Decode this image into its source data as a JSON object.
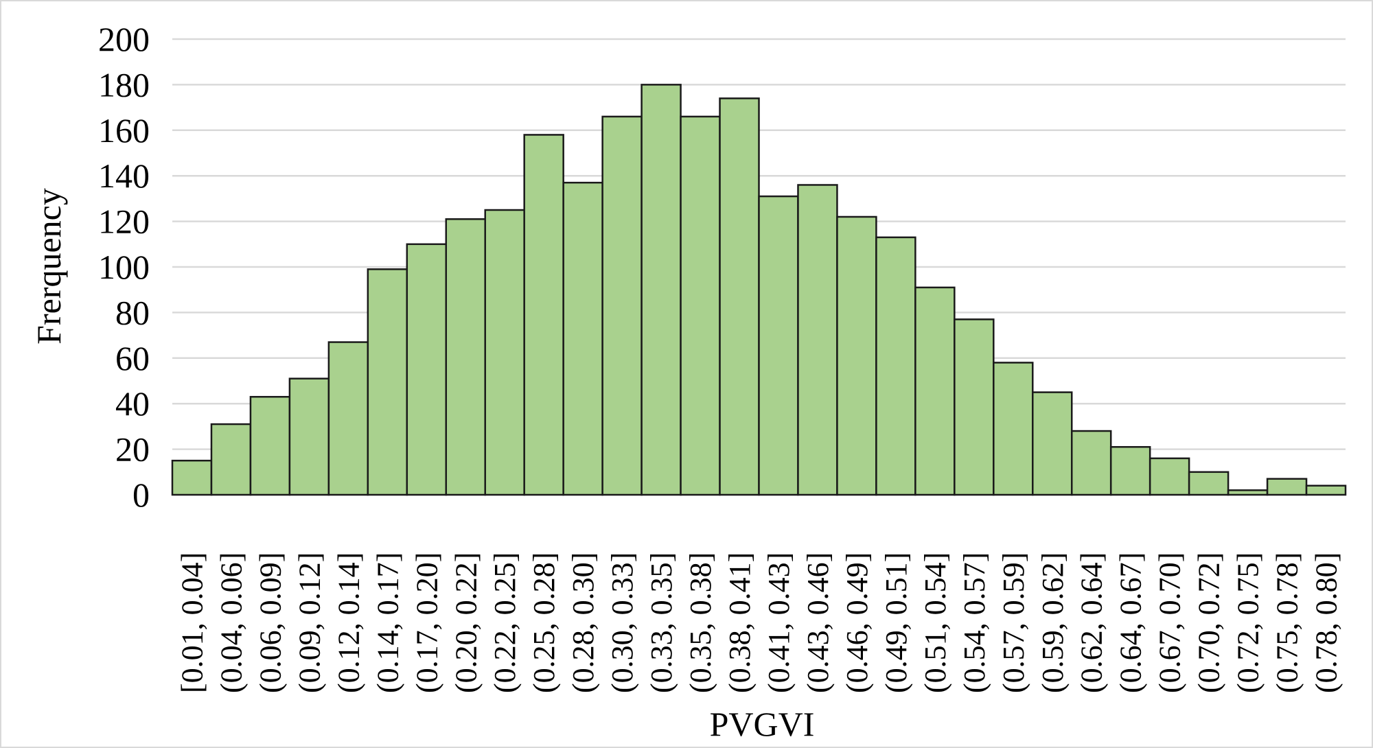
{
  "chart_data": {
    "type": "bar",
    "title": "",
    "xlabel": "PVGVI",
    "ylabel": "Frerquency",
    "ylim": [
      0,
      200
    ],
    "yticks": [
      0,
      20,
      40,
      60,
      80,
      100,
      120,
      140,
      160,
      180,
      200
    ],
    "grid": true,
    "bar_color": "#a9d18e",
    "bar_edge_color": "#1a1a1a",
    "categories": [
      "[0.01, 0.04]",
      "(0.04, 0.06]",
      "(0.06, 0.09]",
      "(0.09, 0.12]",
      "(0.12, 0.14]",
      "(0.14, 0.17]",
      "(0.17, 0.20]",
      "(0.20, 0.22]",
      "(0.22, 0.25]",
      "(0.25, 0.28]",
      "(0.28, 0.30]",
      "(0.30, 0.33]",
      "(0.33, 0.35]",
      "(0.35, 0.38]",
      "(0.38, 0.41]",
      "(0.41, 0.43]",
      "(0.43, 0.46]",
      "(0.46, 0.49]",
      "(0.49, 0.51]",
      "(0.51, 0.54]",
      "(0.54, 0.57]",
      "(0.57, 0.59]",
      "(0.59, 0.62]",
      "(0.62, 0.64]",
      "(0.64, 0.67]",
      "(0.67, 0.70]",
      "(0.70, 0.72]",
      "(0.72, 0.75]",
      "(0.75, 0.78]",
      "(0.78, 0.80]"
    ],
    "values": [
      15,
      31,
      43,
      51,
      67,
      99,
      110,
      121,
      125,
      158,
      137,
      166,
      180,
      166,
      174,
      131,
      136,
      122,
      113,
      91,
      77,
      58,
      45,
      28,
      21,
      16,
      10,
      2,
      7,
      4
    ]
  }
}
